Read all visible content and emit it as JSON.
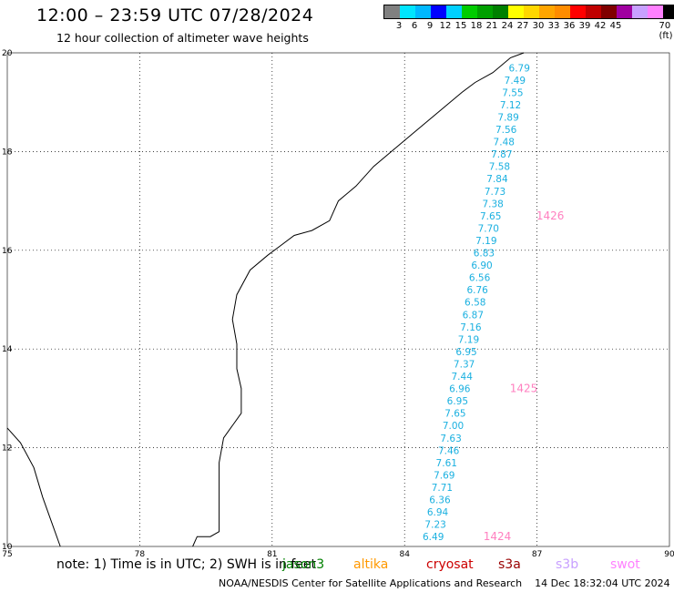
{
  "title": "12:00 – 23:59 UTC 07/28/2024",
  "subtitle": "12 hour collection of altimeter wave heights",
  "legend": {
    "colors": [
      "#808080",
      "#00e5ff",
      "#00b8ff",
      "#0000ff",
      "#00d0ff",
      "#00cc00",
      "#00a000",
      "#008000",
      "#ffff00",
      "#ffd700",
      "#ffa500",
      "#ff8c00",
      "#ff0000",
      "#c00000",
      "#800000",
      "#a000a0",
      "#c8a0ff",
      "#ff80ff",
      "#000000"
    ],
    "labels": [
      "3",
      "6",
      "9",
      "12",
      "15",
      "18",
      "21",
      "24",
      "27",
      "30",
      "33",
      "36",
      "39",
      "42",
      "45",
      "70 (ft)"
    ]
  },
  "note": "note: 1) Time is in UTC; 2) SWH is in feet",
  "satellites": [
    {
      "name": "jason3",
      "color": "#008000"
    },
    {
      "name": "altika",
      "color": "#ff9900"
    },
    {
      "name": "cryosat",
      "color": "#cc0000"
    },
    {
      "name": "s3a",
      "color": "#990000"
    },
    {
      "name": "s3b",
      "color": "#c8a0ff"
    },
    {
      "name": "swot",
      "color": "#ff80ff"
    }
  ],
  "credit": "NOAA/NESDIS Center for Satellite Applications and Research    14 Dec 18:32:04 UTC 2024",
  "chart_data": {
    "type": "scatter",
    "xlim": [
      75,
      90
    ],
    "ylim": [
      10,
      20
    ],
    "x_ticks": [
      "75",
      "78",
      "81",
      "84",
      "87",
      "90"
    ],
    "y_ticks": [
      "10",
      "12",
      "14",
      "16",
      "18",
      "20"
    ],
    "grid": true,
    "value_color": "#1ab0e0",
    "time_color": "#ff80c0",
    "points": [
      {
        "lon": 86.6,
        "lat": 19.7,
        "swh": "6.79"
      },
      {
        "lon": 86.5,
        "lat": 19.45,
        "swh": "7.49"
      },
      {
        "lon": 86.45,
        "lat": 19.2,
        "swh": "7.55"
      },
      {
        "lon": 86.4,
        "lat": 18.95,
        "swh": "7.12"
      },
      {
        "lon": 86.35,
        "lat": 18.7,
        "swh": "7.89"
      },
      {
        "lon": 86.3,
        "lat": 18.45,
        "swh": "7.56"
      },
      {
        "lon": 86.25,
        "lat": 18.2,
        "swh": "7.48"
      },
      {
        "lon": 86.2,
        "lat": 17.95,
        "swh": "7.87"
      },
      {
        "lon": 86.15,
        "lat": 17.7,
        "swh": "7.58"
      },
      {
        "lon": 86.1,
        "lat": 17.45,
        "swh": "7.84"
      },
      {
        "lon": 86.05,
        "lat": 17.2,
        "swh": "7.73"
      },
      {
        "lon": 86.0,
        "lat": 16.95,
        "swh": "7.38"
      },
      {
        "lon": 85.95,
        "lat": 16.7,
        "swh": "7.65"
      },
      {
        "lon": 85.9,
        "lat": 16.45,
        "swh": "7.70"
      },
      {
        "lon": 85.85,
        "lat": 16.2,
        "swh": "7.19"
      },
      {
        "lon": 85.8,
        "lat": 15.95,
        "swh": "6.83"
      },
      {
        "lon": 85.75,
        "lat": 15.7,
        "swh": "6.90"
      },
      {
        "lon": 85.7,
        "lat": 15.45,
        "swh": "6.56"
      },
      {
        "lon": 85.65,
        "lat": 15.2,
        "swh": "6.76"
      },
      {
        "lon": 85.6,
        "lat": 14.95,
        "swh": "6.58"
      },
      {
        "lon": 85.55,
        "lat": 14.7,
        "swh": "6.87"
      },
      {
        "lon": 85.5,
        "lat": 14.45,
        "swh": "7.16"
      },
      {
        "lon": 85.45,
        "lat": 14.2,
        "swh": "7.19"
      },
      {
        "lon": 85.4,
        "lat": 13.95,
        "swh": "6.95"
      },
      {
        "lon": 85.35,
        "lat": 13.7,
        "swh": "7.37"
      },
      {
        "lon": 85.3,
        "lat": 13.45,
        "swh": "7.44"
      },
      {
        "lon": 85.25,
        "lat": 13.2,
        "swh": "6.96"
      },
      {
        "lon": 85.2,
        "lat": 12.95,
        "swh": "6.95"
      },
      {
        "lon": 85.15,
        "lat": 12.7,
        "swh": "7.65"
      },
      {
        "lon": 85.1,
        "lat": 12.45,
        "swh": "7.00"
      },
      {
        "lon": 85.05,
        "lat": 12.2,
        "swh": "7.63"
      },
      {
        "lon": 85.0,
        "lat": 11.95,
        "swh": "7.46"
      },
      {
        "lon": 84.95,
        "lat": 11.7,
        "swh": "7.61"
      },
      {
        "lon": 84.9,
        "lat": 11.45,
        "swh": "7.69"
      },
      {
        "lon": 84.85,
        "lat": 11.2,
        "swh": "7.71"
      },
      {
        "lon": 84.8,
        "lat": 10.95,
        "swh": "6.36"
      },
      {
        "lon": 84.75,
        "lat": 10.7,
        "swh": "6.94"
      },
      {
        "lon": 84.7,
        "lat": 10.45,
        "swh": "7.23"
      },
      {
        "lon": 84.65,
        "lat": 10.2,
        "swh": "6.49"
      }
    ],
    "time_labels": [
      {
        "lon": 87.3,
        "lat": 16.7,
        "text": "1426"
      },
      {
        "lon": 86.7,
        "lat": 13.2,
        "text": "1425"
      },
      {
        "lon": 86.1,
        "lat": 10.2,
        "text": "1424"
      }
    ],
    "coastline": [
      [
        86.7,
        20.0
      ],
      [
        86.4,
        19.9
      ],
      [
        86.0,
        19.6
      ],
      [
        85.6,
        19.4
      ],
      [
        85.3,
        19.2
      ],
      [
        84.9,
        18.9
      ],
      [
        84.5,
        18.6
      ],
      [
        84.1,
        18.3
      ],
      [
        83.7,
        18.0
      ],
      [
        83.3,
        17.7
      ],
      [
        82.9,
        17.3
      ],
      [
        82.5,
        17.0
      ],
      [
        82.3,
        16.6
      ],
      [
        81.9,
        16.4
      ],
      [
        81.5,
        16.3
      ],
      [
        81.2,
        16.1
      ],
      [
        80.9,
        15.9
      ],
      [
        80.5,
        15.6
      ],
      [
        80.2,
        15.1
      ],
      [
        80.1,
        14.6
      ],
      [
        80.2,
        14.1
      ],
      [
        80.2,
        13.6
      ],
      [
        80.3,
        13.2
      ],
      [
        80.3,
        12.7
      ],
      [
        79.9,
        12.2
      ],
      [
        79.8,
        11.7
      ],
      [
        79.8,
        11.2
      ],
      [
        79.8,
        10.7
      ],
      [
        79.8,
        10.3
      ],
      [
        79.6,
        10.2
      ],
      [
        79.3,
        10.2
      ],
      [
        79.2,
        10.0
      ]
    ],
    "coastline_west": [
      [
        75.0,
        12.4
      ],
      [
        75.3,
        12.1
      ],
      [
        75.6,
        11.6
      ],
      [
        75.8,
        11.0
      ],
      [
        76.0,
        10.5
      ],
      [
        76.2,
        10.0
      ]
    ]
  }
}
